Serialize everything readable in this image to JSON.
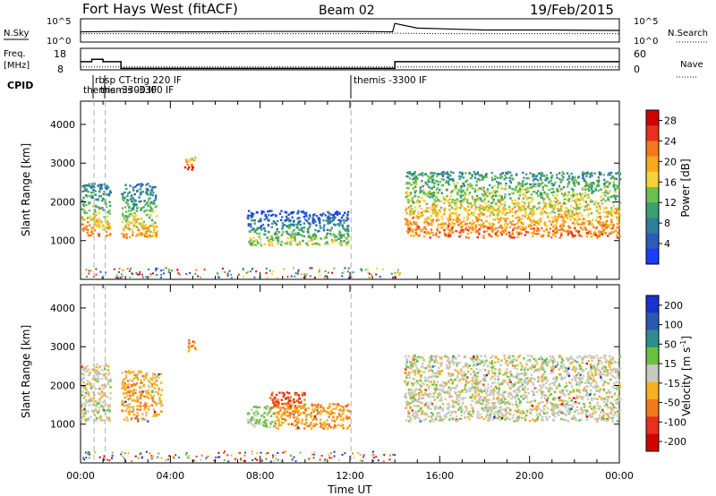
{
  "header": {
    "title": "Fort Hays West (fitACF)",
    "beam": "Beam 02",
    "date": "19/Feb/2015"
  },
  "strip_labels": {
    "nsky": "N.Sky",
    "nsky_ticks": [
      "10^5",
      "10^0"
    ],
    "nsearch": "N.Search",
    "nsearch_ticks": [
      "10^5",
      "10^0"
    ],
    "freq": "Freq.",
    "freq_unit": "[MHz]",
    "freq_ticks": [
      "18",
      "8"
    ],
    "nave": "Nave",
    "nave_ticks": [
      "60",
      "0"
    ],
    "cpid": "CPID"
  },
  "cpid_labels": [
    "themis -3300 IF",
    "rbsp CT-trig 220 IF",
    "themis -3300 IF",
    "themis -3300 IF"
  ],
  "cpid_visible_labels": [
    "rbsp CT-trig 220 IF",
    "themis -3300 IF"
  ],
  "x_axis": {
    "label": "Time UT",
    "ticks": [
      "00:00",
      "04:00",
      "08:00",
      "12:00",
      "16:00",
      "20:00",
      "00:00"
    ]
  },
  "power_panel": {
    "ylabel": "Slant Range [km]",
    "yticks": [
      "1000",
      "2000",
      "3000",
      "4000"
    ],
    "colorbar_label": "Power [dB]",
    "colorbar_ticks": [
      "4",
      "8",
      "12",
      "16",
      "20",
      "24",
      "28"
    ]
  },
  "velocity_panel": {
    "ylabel": "Slant Range [km]",
    "yticks": [
      "1000",
      "2000",
      "3000",
      "4000"
    ],
    "colorbar_label": "Velocity [m s",
    "colorbar_label_sup": "-1",
    "colorbar_label_end": "]",
    "colorbar_ticks": [
      "200",
      "100",
      "50",
      "15",
      "-15",
      "-50",
      "-100",
      "-200"
    ]
  },
  "colors": {
    "power_scale": [
      "#1a3cff",
      "#2e5ab8",
      "#2f7f9c",
      "#3aa070",
      "#6cc050",
      "#f6d23a",
      "#f7a81e",
      "#f27a1a",
      "#e8301c",
      "#d40000"
    ],
    "velocity_scale": [
      "#1a32d0",
      "#2a5ab0",
      "#2e8e8e",
      "#6cc040",
      "#c8c8c0",
      "#f6b020",
      "#f27a1a",
      "#e8301c",
      "#d40000"
    ],
    "frame": "#000000",
    "dashed_marker": "#b0b0b0"
  },
  "chart_data": [
    {
      "type": "line",
      "name_hint": "noise strip",
      "x_unit": "hours UT",
      "series": [
        {
          "name": "N.Sky",
          "x": [
            0,
            2,
            4,
            6,
            8,
            10,
            12,
            13.9,
            14,
            15,
            18,
            21,
            24
          ],
          "y": [
            2.2,
            2.3,
            2.2,
            2.2,
            2.3,
            2.3,
            2.3,
            2.2,
            4.0,
            3.0,
            2.6,
            2.6,
            2.5
          ]
        },
        {
          "name": "N.Search",
          "x": [
            0,
            4,
            8,
            12,
            14,
            16,
            20,
            24
          ],
          "y": [
            1.8,
            1.8,
            1.8,
            1.8,
            1.9,
            1.8,
            1.8,
            1.8
          ]
        }
      ],
      "ylim": [
        0,
        5
      ]
    },
    {
      "type": "line",
      "name_hint": "frequency / nave strip",
      "series": [
        {
          "name": "Freq.",
          "x": [
            0,
            0.5,
            0.5,
            1.0,
            1.0,
            1.8,
            1.8,
            14.0,
            14.0,
            24
          ],
          "y": [
            11.8,
            11.8,
            12.9,
            12.9,
            11.8,
            11.8,
            8.7,
            8.7,
            11.8,
            11.8
          ]
        },
        {
          "name": "Nave",
          "x": [
            0,
            24
          ],
          "y": [
            8,
            8
          ]
        }
      ],
      "ylim_freq": [
        8,
        18
      ],
      "ylim_nave": [
        0,
        60
      ]
    },
    {
      "type": "heatmap",
      "name_hint": "power",
      "x_unit": "hours UT",
      "y_unit": "km",
      "xlim": [
        0,
        24
      ],
      "ylim": [
        0,
        4600
      ],
      "clim": [
        0,
        30
      ],
      "patches": [
        {
          "t0": 0.0,
          "t1": 1.3,
          "r0": 1150,
          "r1": 2500,
          "mean": 14
        },
        {
          "t0": 1.8,
          "t1": 3.4,
          "r0": 1100,
          "r1": 2500,
          "mean": 13
        },
        {
          "t0": 4.6,
          "t1": 5.1,
          "r0": 2850,
          "r1": 3200,
          "mean": 22
        },
        {
          "t0": 7.4,
          "t1": 11.9,
          "r0": 900,
          "r1": 1800,
          "mean": 9
        },
        {
          "t0": 14.4,
          "t1": 24.0,
          "r0": 1100,
          "r1": 2800,
          "mean": 16
        }
      ]
    },
    {
      "type": "heatmap",
      "name_hint": "velocity",
      "x_unit": "hours UT",
      "y_unit": "km",
      "xlim": [
        0,
        24
      ],
      "ylim": [
        0,
        4600
      ],
      "clim": [
        -200,
        200
      ],
      "patches": [
        {
          "t0": 0.0,
          "t1": 1.3,
          "r0": 1100,
          "r1": 2600,
          "mean": -5
        },
        {
          "t0": 1.8,
          "t1": 3.6,
          "r0": 1100,
          "r1": 2400,
          "mean": -45
        },
        {
          "t0": 4.7,
          "t1": 5.1,
          "r0": 2900,
          "r1": 3200,
          "mean": -80
        },
        {
          "t0": 7.4,
          "t1": 8.6,
          "r0": 950,
          "r1": 1500,
          "mean": 30
        },
        {
          "t0": 8.4,
          "t1": 10.0,
          "r0": 1400,
          "r1": 1850,
          "mean": -120
        },
        {
          "t0": 8.6,
          "t1": 12.0,
          "r0": 900,
          "r1": 1550,
          "mean": -60
        },
        {
          "t0": 14.4,
          "t1": 24.0,
          "r0": 1100,
          "r1": 2800,
          "mean": 0
        }
      ]
    }
  ]
}
